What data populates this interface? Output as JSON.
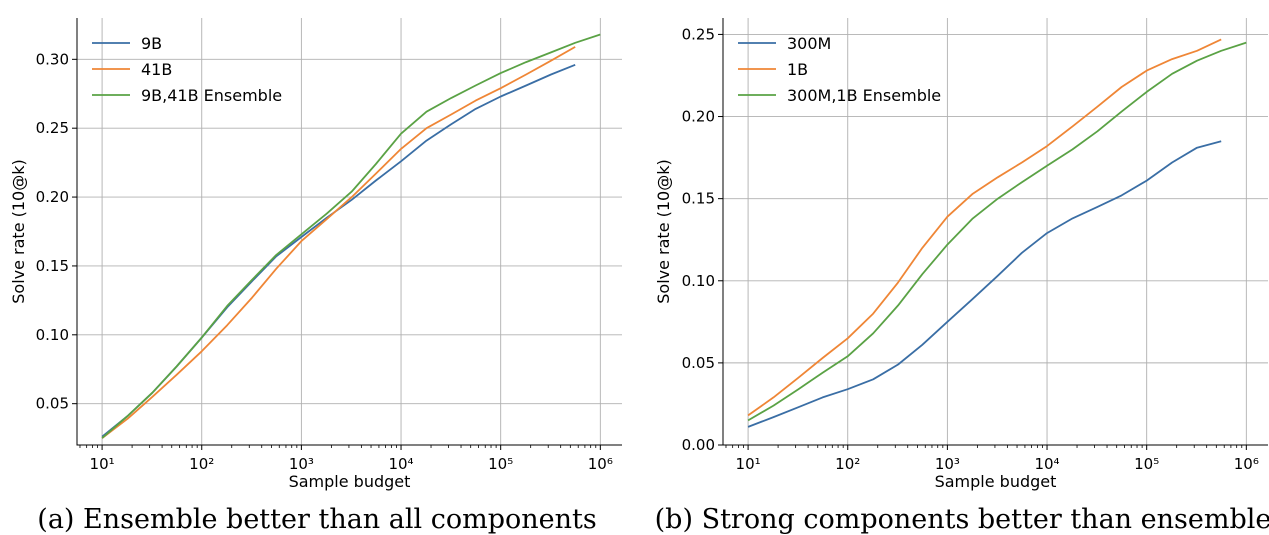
{
  "chart_data": [
    {
      "type": "line",
      "caption": "(a) Ensemble better than all components",
      "xlabel": "Sample budget",
      "ylabel": "Solve rate (10@k)",
      "xscale": "log",
      "xlim": [
        5.6,
        1650000
      ],
      "ylim": [
        0.02,
        0.33
      ],
      "xticks": [
        10,
        100,
        1000,
        10000,
        100000,
        1000000
      ],
      "yticks": [
        0.05,
        0.1,
        0.15,
        0.2,
        0.25,
        0.3
      ],
      "ytick_labels": [
        "0.05",
        "0.10",
        "0.15",
        "0.20",
        "0.25",
        "0.30"
      ],
      "grid": true,
      "legend": "top-left",
      "series": [
        {
          "name": "9B",
          "color": "#3a6ea5",
          "x": [
            10,
            18,
            32,
            56,
            100,
            180,
            320,
            560,
            1000,
            1800,
            3200,
            5600,
            10000,
            18000,
            32000,
            56000,
            100000,
            180000,
            320000,
            560000
          ],
          "y": [
            0.026,
            0.041,
            0.058,
            0.077,
            0.098,
            0.12,
            0.139,
            0.157,
            0.171,
            0.185,
            0.198,
            0.212,
            0.226,
            0.241,
            0.253,
            0.264,
            0.273,
            0.281,
            0.289,
            0.296
          ]
        },
        {
          "name": "41B",
          "color": "#ef8636",
          "x": [
            10,
            18,
            32,
            56,
            100,
            180,
            320,
            560,
            1000,
            1800,
            3200,
            5600,
            10000,
            18000,
            32000,
            56000,
            100000,
            180000,
            320000,
            560000
          ],
          "y": [
            0.025,
            0.039,
            0.055,
            0.071,
            0.088,
            0.107,
            0.127,
            0.148,
            0.168,
            0.184,
            0.2,
            0.217,
            0.235,
            0.25,
            0.26,
            0.27,
            0.279,
            0.289,
            0.299,
            0.309
          ]
        },
        {
          "name": "9B,41B Ensemble",
          "color": "#5aa245",
          "x": [
            10,
            18,
            32,
            56,
            100,
            180,
            320,
            560,
            1000,
            1800,
            3200,
            5600,
            10000,
            18000,
            32000,
            56000,
            100000,
            180000,
            320000,
            560000,
            1000000
          ],
          "y": [
            0.025,
            0.041,
            0.058,
            0.077,
            0.098,
            0.121,
            0.14,
            0.158,
            0.173,
            0.188,
            0.204,
            0.224,
            0.246,
            0.262,
            0.272,
            0.281,
            0.29,
            0.298,
            0.305,
            0.312,
            0.318
          ]
        }
      ]
    },
    {
      "type": "line",
      "caption": "(b) Strong components better than ensemble",
      "xlabel": "Sample budget",
      "ylabel": "Solve rate (10@k)",
      "xscale": "log",
      "xlim": [
        5.6,
        1650000
      ],
      "ylim": [
        0.0,
        0.26
      ],
      "xticks": [
        10,
        100,
        1000,
        10000,
        100000,
        1000000
      ],
      "yticks": [
        0.0,
        0.05,
        0.1,
        0.15,
        0.2,
        0.25
      ],
      "ytick_labels": [
        "0.00",
        "0.05",
        "0.10",
        "0.15",
        "0.20",
        "0.25"
      ],
      "grid": true,
      "legend": "top-left",
      "series": [
        {
          "name": "300M",
          "color": "#3a6ea5",
          "x": [
            10,
            18,
            32,
            56,
            100,
            180,
            320,
            560,
            1000,
            1800,
            3200,
            5600,
            10000,
            18000,
            32000,
            56000,
            100000,
            180000,
            320000,
            560000
          ],
          "y": [
            0.011,
            0.017,
            0.023,
            0.029,
            0.034,
            0.04,
            0.049,
            0.061,
            0.075,
            0.089,
            0.103,
            0.117,
            0.129,
            0.138,
            0.145,
            0.152,
            0.161,
            0.172,
            0.181,
            0.185
          ]
        },
        {
          "name": "1B",
          "color": "#ef8636",
          "x": [
            10,
            18,
            32,
            56,
            100,
            180,
            320,
            560,
            1000,
            1800,
            3200,
            5600,
            10000,
            18000,
            32000,
            56000,
            100000,
            180000,
            320000,
            560000
          ],
          "y": [
            0.018,
            0.029,
            0.041,
            0.053,
            0.065,
            0.08,
            0.099,
            0.12,
            0.139,
            0.153,
            0.163,
            0.172,
            0.182,
            0.194,
            0.206,
            0.218,
            0.228,
            0.235,
            0.24,
            0.247
          ]
        },
        {
          "name": "300M,1B Ensemble",
          "color": "#5aa245",
          "x": [
            10,
            18,
            32,
            56,
            100,
            180,
            320,
            560,
            1000,
            1800,
            3200,
            5600,
            10000,
            18000,
            32000,
            56000,
            100000,
            180000,
            320000,
            560000,
            1000000
          ],
          "y": [
            0.015,
            0.024,
            0.034,
            0.044,
            0.054,
            0.068,
            0.085,
            0.104,
            0.122,
            0.138,
            0.15,
            0.16,
            0.17,
            0.18,
            0.191,
            0.203,
            0.215,
            0.226,
            0.234,
            0.24,
            0.245
          ]
        }
      ]
    }
  ]
}
